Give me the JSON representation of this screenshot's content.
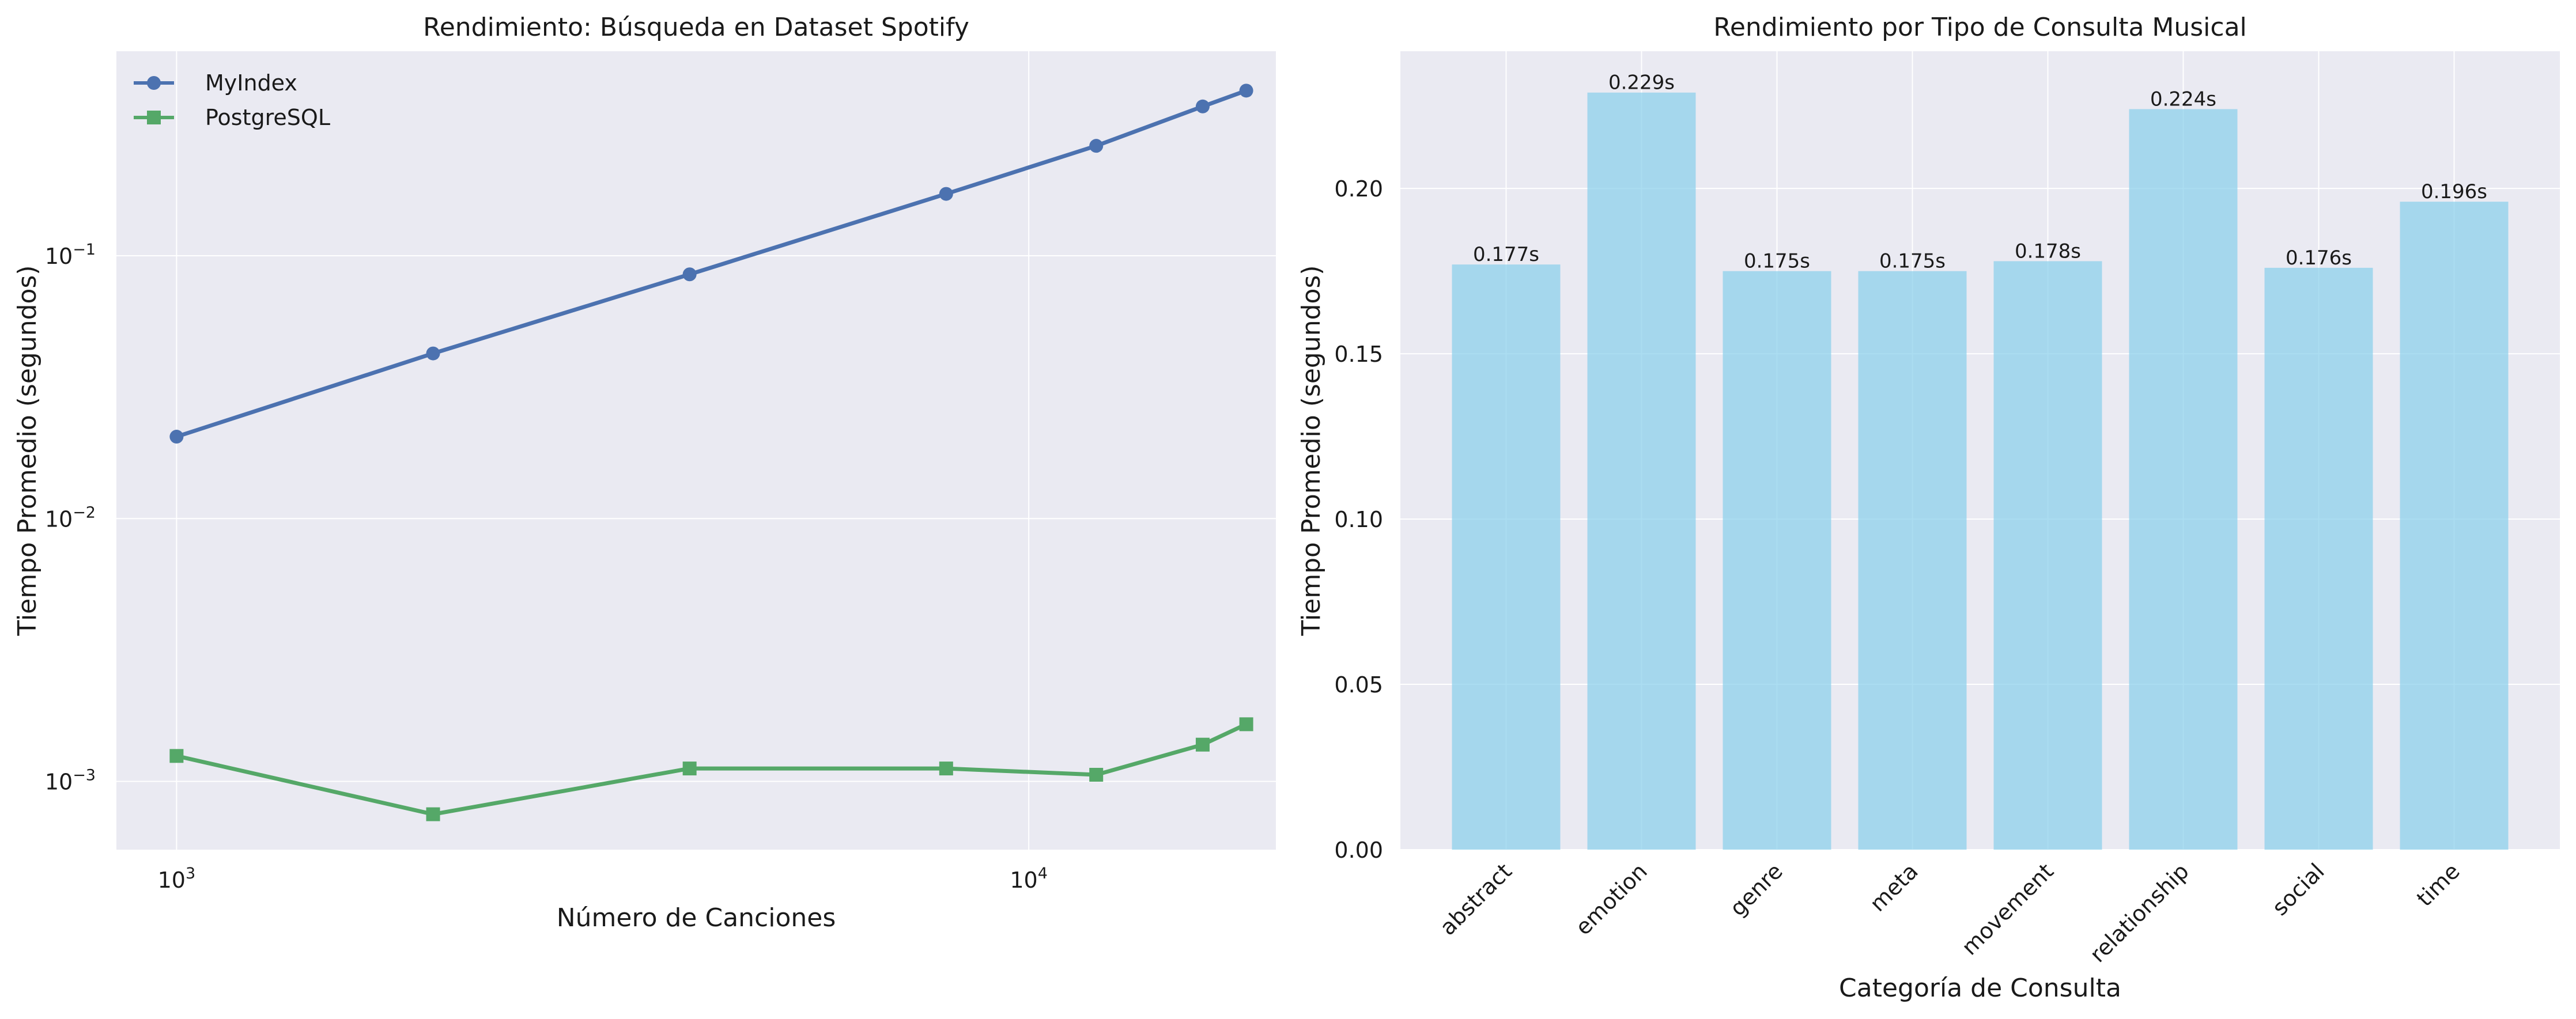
{
  "chart_data": [
    {
      "type": "line",
      "title": "Rendimiento: Búsqueda en Dataset Spotify",
      "xlabel": "Número de Canciones",
      "ylabel": "Tiempo Promedio (segundos)",
      "xscale": "log",
      "yscale": "log",
      "xlim": [
        850,
        19500
      ],
      "ylim": [
        0.00055,
        0.6
      ],
      "xticks": [
        {
          "value": 1000,
          "base": "10",
          "exp": "3"
        },
        {
          "value": 10000,
          "base": "10",
          "exp": "4"
        }
      ],
      "yticks": [
        {
          "value": 0.001,
          "base": "10",
          "exp": "−3"
        },
        {
          "value": 0.01,
          "base": "10",
          "exp": "−2"
        },
        {
          "value": 0.1,
          "base": "10",
          "exp": "−1"
        }
      ],
      "grid": true,
      "legend": "top-left",
      "x": [
        1000,
        2000,
        4000,
        8000,
        12000,
        16000,
        18000
      ],
      "series": [
        {
          "name": "MyIndex",
          "color": "#4c72b0",
          "marker": "circle",
          "values": [
            0.0205,
            0.0425,
            0.085,
            0.172,
            0.262,
            0.37,
            0.425
          ]
        },
        {
          "name": "PostgreSQL",
          "color": "#55a868",
          "marker": "square",
          "values": [
            0.00125,
            0.00075,
            0.00112,
            0.00112,
            0.00106,
            0.00138,
            0.00165
          ]
        }
      ]
    },
    {
      "type": "bar",
      "title": "Rendimiento por Tipo de Consulta Musical",
      "xlabel": "Categoría de Consulta",
      "ylabel": "Tiempo Promedio (segundos)",
      "ylim": [
        0,
        0.2415
      ],
      "yticks": [
        "0.00",
        "0.05",
        "0.10",
        "0.15",
        "0.20"
      ],
      "grid": true,
      "bar_color": "#87ceeb",
      "categories": [
        "abstract",
        "emotion",
        "genre",
        "meta",
        "movement",
        "relationship",
        "social",
        "time"
      ],
      "values": [
        0.177,
        0.229,
        0.175,
        0.175,
        0.178,
        0.224,
        0.176,
        0.196
      ],
      "labels": [
        "0.177s",
        "0.229s",
        "0.175s",
        "0.175s",
        "0.178s",
        "0.224s",
        "0.176s",
        "0.196s"
      ]
    }
  ]
}
